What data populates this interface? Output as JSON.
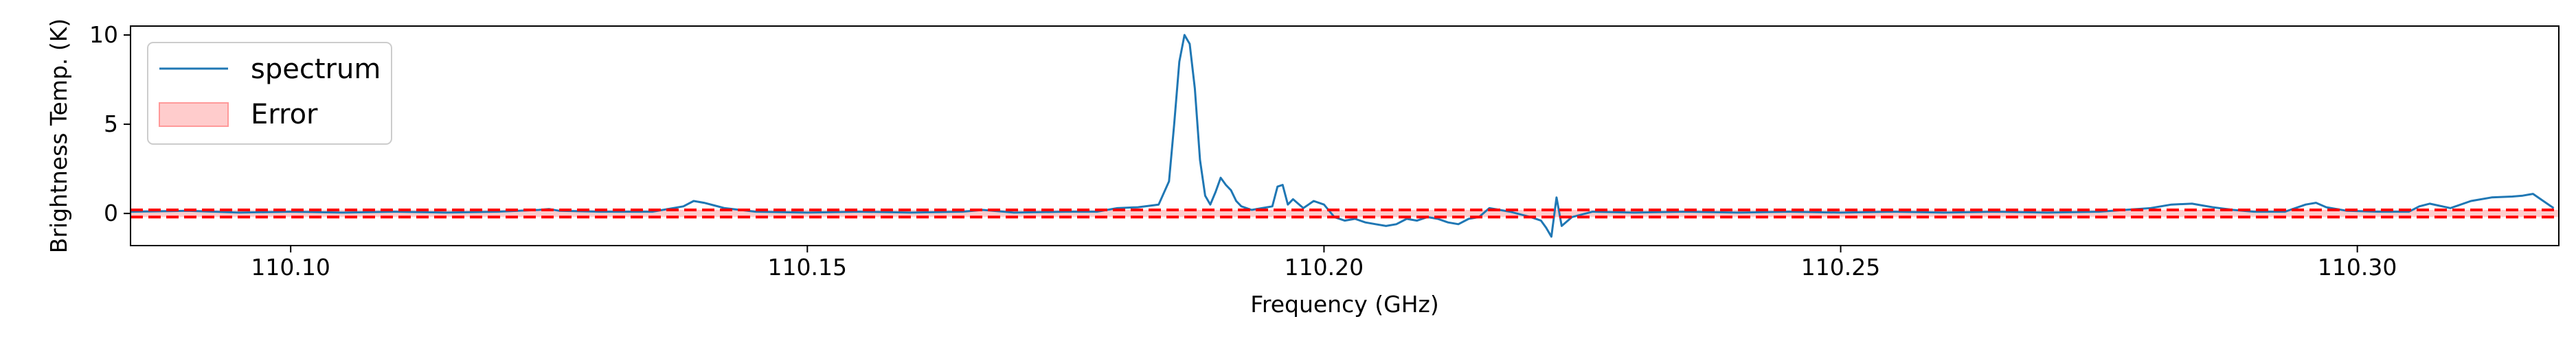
{
  "chart_data": {
    "type": "line",
    "title": "",
    "xlabel": "Frequency (GHz)",
    "ylabel": "Brightness Temp. (K)",
    "xlim": [
      110.0845,
      110.3195
    ],
    "ylim": [
      -1.8,
      10.5
    ],
    "xticks": [
      110.1,
      110.15,
      110.2,
      110.25,
      110.3
    ],
    "xtick_labels": [
      "110.10",
      "110.15",
      "110.20",
      "110.25",
      "110.30"
    ],
    "yticks": [
      0,
      5,
      10
    ],
    "ytick_labels": [
      "0",
      "5",
      "10"
    ],
    "grid": false,
    "legend": {
      "placement": "top-left",
      "entries": [
        {
          "label": "spectrum",
          "kind": "line",
          "color": "#1f77b4"
        },
        {
          "label": "Error",
          "kind": "patch",
          "color": "#ff9999"
        }
      ]
    },
    "error_band": {
      "lower": -0.2,
      "upper": 0.2,
      "color": "#ff0000"
    },
    "series": [
      {
        "name": "spectrum",
        "color": "#1f77b4",
        "x": [
          110.0845,
          110.09,
          110.095,
          110.1,
          110.105,
          110.11,
          110.115,
          110.12,
          110.124,
          110.125,
          110.126,
          110.13,
          110.135,
          110.138,
          110.139,
          110.14,
          110.141,
          110.142,
          110.145,
          110.15,
          110.155,
          110.16,
          110.165,
          110.167,
          110.17,
          110.175,
          110.178,
          110.18,
          110.182,
          110.184,
          110.185,
          110.1855,
          110.186,
          110.1865,
          110.187,
          110.1875,
          110.188,
          110.1885,
          110.189,
          110.1895,
          110.19,
          110.1905,
          110.191,
          110.1915,
          110.192,
          110.193,
          110.194,
          110.195,
          110.1955,
          110.196,
          110.1965,
          110.197,
          110.198,
          110.199,
          110.2,
          110.201,
          110.202,
          110.203,
          110.204,
          110.205,
          110.206,
          110.207,
          110.208,
          110.209,
          110.21,
          110.211,
          110.212,
          110.213,
          110.214,
          110.215,
          110.216,
          110.218,
          110.22,
          110.221,
          110.2215,
          110.222,
          110.2225,
          110.223,
          110.224,
          110.226,
          110.23,
          110.235,
          110.24,
          110.245,
          110.25,
          110.255,
          110.26,
          110.265,
          110.27,
          110.275,
          110.28,
          110.282,
          110.284,
          110.286,
          110.288,
          110.29,
          110.293,
          110.295,
          110.296,
          110.297,
          110.299,
          110.302,
          110.305,
          110.306,
          110.307,
          110.309,
          110.311,
          110.313,
          110.315,
          110.316,
          110.317,
          110.318,
          110.319
        ],
        "y": [
          0.1,
          0.15,
          0.05,
          0.1,
          0.05,
          0.1,
          0.05,
          0.1,
          0.2,
          0.25,
          0.15,
          0.1,
          0.1,
          0.4,
          0.7,
          0.6,
          0.45,
          0.3,
          0.1,
          0.05,
          0.1,
          0.05,
          0.1,
          0.2,
          0.05,
          0.1,
          0.1,
          0.3,
          0.35,
          0.5,
          1.8,
          5.0,
          8.5,
          10.0,
          9.5,
          7.0,
          3.0,
          1.0,
          0.5,
          1.2,
          2.0,
          1.6,
          1.3,
          0.7,
          0.4,
          0.2,
          0.3,
          0.4,
          1.5,
          1.6,
          0.5,
          0.8,
          0.3,
          0.7,
          0.5,
          -0.2,
          -0.4,
          -0.3,
          -0.5,
          -0.6,
          -0.7,
          -0.6,
          -0.3,
          -0.4,
          -0.2,
          -0.3,
          -0.5,
          -0.6,
          -0.3,
          -0.2,
          0.3,
          0.1,
          -0.2,
          -0.4,
          -0.8,
          -1.3,
          0.9,
          -0.7,
          -0.2,
          0.1,
          0.05,
          0.1,
          0.05,
          0.1,
          0.05,
          0.1,
          0.05,
          0.1,
          0.05,
          0.1,
          0.3,
          0.5,
          0.55,
          0.35,
          0.2,
          0.1,
          0.1,
          0.5,
          0.6,
          0.35,
          0.15,
          0.1,
          0.1,
          0.4,
          0.55,
          0.3,
          0.7,
          0.9,
          0.95,
          1.0,
          1.1,
          0.7,
          0.3
        ]
      }
    ]
  }
}
